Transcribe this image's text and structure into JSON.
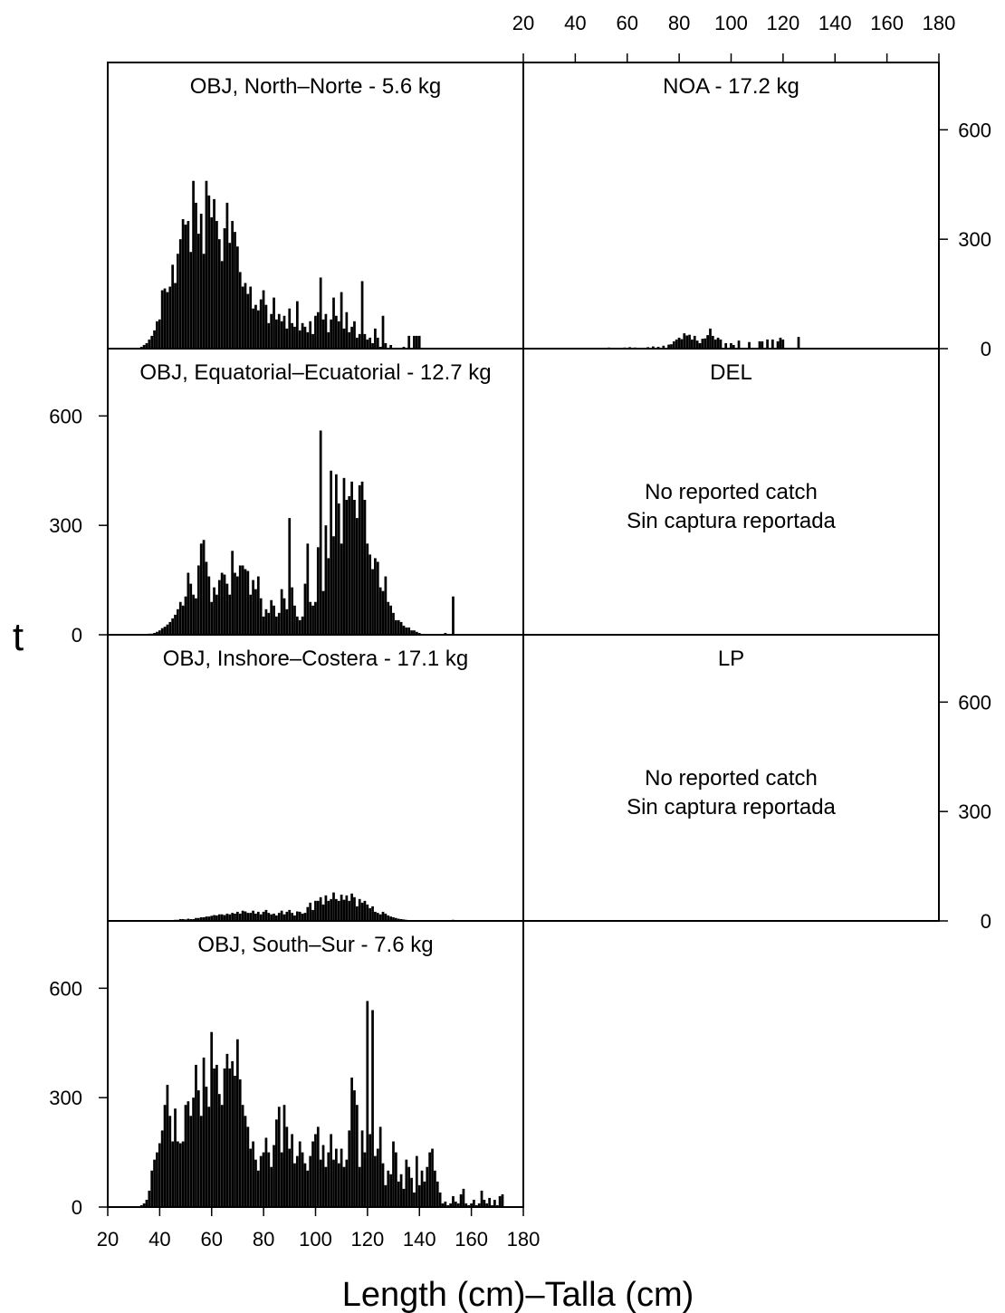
{
  "chart_data": {
    "type": "bar",
    "xlabel": "Length (cm)–Talla (cm)",
    "ylabel": "t",
    "xlim": [
      20,
      180
    ],
    "ylim": [
      0,
      730
    ],
    "x_ticks": [
      20,
      40,
      60,
      80,
      100,
      120,
      140,
      160,
      180
    ],
    "y_ticks": [
      0,
      300,
      600
    ],
    "bin_width_cm": 1,
    "panels": [
      {
        "id": "obj-north",
        "title": "OBJ, North–Norte - 5.6 kg",
        "series": {
          "x": [
            32,
            33,
            34,
            35,
            36,
            37,
            38,
            39,
            40,
            41,
            42,
            43,
            44,
            45,
            46,
            47,
            48,
            49,
            50,
            51,
            52,
            53,
            54,
            55,
            56,
            57,
            58,
            59,
            60,
            61,
            62,
            63,
            64,
            65,
            66,
            67,
            68,
            69,
            70,
            71,
            72,
            73,
            74,
            75,
            76,
            77,
            78,
            79,
            80,
            81,
            82,
            83,
            84,
            85,
            86,
            87,
            88,
            89,
            90,
            91,
            92,
            93,
            94,
            95,
            96,
            97,
            98,
            99,
            100,
            101,
            102,
            103,
            104,
            105,
            106,
            107,
            108,
            109,
            110,
            111,
            112,
            113,
            114,
            115,
            116,
            117,
            118,
            119,
            120,
            121,
            122,
            123,
            124,
            125,
            126,
            127,
            128,
            129,
            130,
            131,
            132,
            133,
            134,
            135,
            136,
            137,
            138,
            139,
            140
          ],
          "values": [
            0,
            5,
            10,
            15,
            25,
            35,
            50,
            75,
            80,
            160,
            165,
            155,
            170,
            230,
            180,
            260,
            300,
            355,
            340,
            350,
            265,
            460,
            400,
            315,
            370,
            260,
            460,
            420,
            360,
            410,
            350,
            300,
            240,
            330,
            400,
            290,
            350,
            320,
            280,
            210,
            170,
            180,
            150,
            170,
            110,
            120,
            105,
            135,
            160,
            120,
            70,
            95,
            140,
            80,
            95,
            75,
            90,
            55,
            110,
            70,
            60,
            130,
            50,
            70,
            60,
            45,
            75,
            40,
            90,
            100,
            195,
            80,
            95,
            45,
            80,
            140,
            90,
            75,
            155,
            55,
            100,
            45,
            60,
            75,
            30,
            40,
            185,
            40,
            25,
            30,
            15,
            55,
            30,
            5,
            90,
            15,
            0,
            10,
            0,
            0,
            0,
            0,
            5,
            0,
            35,
            0,
            35,
            35,
            35
          ]
        }
      },
      {
        "id": "noa",
        "title": "NOA - 17.2 kg",
        "series": {
          "x": [
            53,
            59,
            61,
            63,
            68,
            70,
            72,
            74,
            76,
            77,
            78,
            79,
            80,
            81,
            82,
            83,
            84,
            85,
            86,
            87,
            88,
            89,
            90,
            91,
            92,
            93,
            94,
            95,
            96,
            98,
            100,
            101,
            103,
            107,
            111,
            112,
            114,
            116,
            118,
            119,
            120,
            126
          ],
          "values": [
            3,
            3,
            4,
            3,
            4,
            6,
            5,
            8,
            11,
            12,
            20,
            25,
            30,
            26,
            42,
            36,
            38,
            25,
            35,
            22,
            15,
            27,
            28,
            37,
            55,
            35,
            25,
            30,
            25,
            15,
            15,
            10,
            22,
            18,
            20,
            20,
            25,
            25,
            20,
            30,
            25,
            32
          ]
        }
      },
      {
        "id": "obj-equatorial",
        "title": "OBJ, Equatorial–Ecuatorial - 12.7 kg",
        "series": {
          "x": [
            35,
            36,
            37,
            38,
            39,
            40,
            41,
            42,
            43,
            44,
            45,
            46,
            47,
            48,
            49,
            50,
            51,
            52,
            53,
            54,
            55,
            56,
            57,
            58,
            59,
            60,
            61,
            62,
            63,
            64,
            65,
            66,
            67,
            68,
            69,
            70,
            71,
            72,
            73,
            74,
            75,
            76,
            77,
            78,
            79,
            80,
            81,
            82,
            83,
            84,
            85,
            86,
            87,
            88,
            89,
            90,
            91,
            92,
            93,
            94,
            95,
            96,
            97,
            98,
            99,
            100,
            101,
            102,
            103,
            104,
            105,
            106,
            107,
            108,
            109,
            110,
            111,
            112,
            113,
            114,
            115,
            116,
            117,
            118,
            119,
            120,
            121,
            122,
            123,
            124,
            125,
            126,
            127,
            128,
            129,
            130,
            131,
            132,
            133,
            134,
            135,
            136,
            137,
            138,
            139,
            140,
            150,
            153
          ],
          "values": [
            2,
            3,
            3,
            5,
            8,
            12,
            18,
            22,
            28,
            35,
            45,
            55,
            70,
            90,
            80,
            105,
            170,
            140,
            110,
            100,
            190,
            250,
            260,
            200,
            160,
            90,
            130,
            110,
            150,
            170,
            165,
            140,
            110,
            230,
            170,
            160,
            190,
            190,
            180,
            175,
            110,
            150,
            125,
            160,
            100,
            50,
            70,
            60,
            95,
            80,
            50,
            60,
            125,
            100,
            70,
            320,
            130,
            80,
            50,
            40,
            50,
            140,
            250,
            90,
            80,
            90,
            240,
            560,
            120,
            300,
            210,
            450,
            270,
            440,
            360,
            250,
            430,
            370,
            380,
            420,
            370,
            320,
            410,
            420,
            370,
            250,
            220,
            180,
            210,
            200,
            130,
            120,
            160,
            90,
            80,
            60,
            40,
            40,
            35,
            25,
            20,
            20,
            12,
            12,
            8,
            5,
            5,
            105
          ]
        }
      },
      {
        "id": "del",
        "title": "DEL",
        "note_line1": "No reported catch",
        "note_line2": "Sin captura reportada"
      },
      {
        "id": "obj-inshore",
        "title": "OBJ, Inshore–Costera - 17.1 kg",
        "series": {
          "x": [
            45,
            46,
            47,
            48,
            49,
            50,
            51,
            52,
            53,
            54,
            55,
            56,
            57,
            58,
            59,
            60,
            61,
            62,
            63,
            64,
            65,
            66,
            67,
            68,
            69,
            70,
            71,
            72,
            73,
            74,
            75,
            76,
            77,
            78,
            79,
            80,
            81,
            82,
            83,
            84,
            85,
            86,
            87,
            88,
            89,
            90,
            91,
            92,
            93,
            94,
            95,
            96,
            97,
            98,
            99,
            100,
            101,
            102,
            103,
            104,
            105,
            106,
            107,
            108,
            109,
            110,
            111,
            112,
            113,
            114,
            115,
            116,
            117,
            118,
            119,
            120,
            121,
            122,
            123,
            124,
            125,
            126,
            127,
            128,
            129,
            130,
            131,
            132,
            133,
            134,
            135,
            136,
            137,
            138,
            139,
            140,
            153
          ],
          "values": [
            2,
            3,
            3,
            5,
            5,
            4,
            6,
            5,
            5,
            8,
            8,
            10,
            10,
            12,
            12,
            14,
            16,
            15,
            18,
            18,
            16,
            20,
            18,
            22,
            20,
            25,
            20,
            28,
            26,
            22,
            22,
            28,
            20,
            25,
            18,
            25,
            30,
            22,
            18,
            20,
            15,
            22,
            28,
            18,
            25,
            30,
            22,
            15,
            26,
            25,
            20,
            22,
            38,
            50,
            30,
            55,
            55,
            65,
            45,
            70,
            55,
            60,
            78,
            60,
            55,
            72,
            58,
            70,
            55,
            75,
            65,
            40,
            60,
            50,
            55,
            45,
            35,
            40,
            25,
            22,
            18,
            25,
            20,
            15,
            12,
            10,
            8,
            6,
            5,
            4,
            3,
            2,
            2,
            1,
            1,
            0,
            3
          ]
        }
      },
      {
        "id": "lp",
        "title": "LP",
        "note_line1": "No reported catch",
        "note_line2": "Sin captura reportada"
      },
      {
        "id": "obj-south",
        "title": "OBJ, South–Sur - 7.6 kg",
        "series": {
          "x": [
            33,
            34,
            35,
            36,
            37,
            38,
            39,
            40,
            41,
            42,
            43,
            44,
            45,
            46,
            47,
            48,
            49,
            50,
            51,
            52,
            53,
            54,
            55,
            56,
            57,
            58,
            59,
            60,
            61,
            62,
            63,
            64,
            65,
            66,
            67,
            68,
            69,
            70,
            71,
            72,
            73,
            74,
            75,
            76,
            77,
            78,
            79,
            80,
            81,
            82,
            83,
            84,
            85,
            86,
            87,
            88,
            89,
            90,
            91,
            92,
            93,
            94,
            95,
            96,
            97,
            98,
            99,
            100,
            101,
            102,
            103,
            104,
            105,
            106,
            107,
            108,
            109,
            110,
            111,
            112,
            113,
            114,
            115,
            116,
            117,
            118,
            119,
            120,
            121,
            122,
            123,
            124,
            125,
            126,
            127,
            128,
            129,
            130,
            131,
            132,
            133,
            134,
            135,
            136,
            137,
            138,
            139,
            140,
            141,
            142,
            143,
            144,
            145,
            146,
            147,
            148,
            149,
            150,
            151,
            152,
            153,
            154,
            155,
            156,
            157,
            158,
            159,
            160,
            161,
            162,
            163,
            164,
            165,
            166,
            167,
            168,
            169,
            170,
            171,
            172
          ],
          "values": [
            5,
            10,
            20,
            45,
            100,
            130,
            150,
            175,
            210,
            280,
            335,
            250,
            180,
            270,
            180,
            175,
            180,
            280,
            290,
            250,
            300,
            390,
            320,
            250,
            410,
            330,
            275,
            480,
            380,
            390,
            310,
            280,
            380,
            420,
            380,
            400,
            360,
            460,
            350,
            280,
            250,
            220,
            160,
            180,
            130,
            100,
            140,
            150,
            190,
            150,
            110,
            170,
            240,
            275,
            150,
            280,
            220,
            160,
            200,
            120,
            140,
            180,
            150,
            120,
            100,
            140,
            180,
            200,
            220,
            130,
            170,
            110,
            150,
            200,
            130,
            160,
            120,
            160,
            110,
            130,
            210,
            355,
            320,
            280,
            110,
            210,
            150,
            565,
            200,
            540,
            140,
            160,
            220,
            120,
            60,
            100,
            90,
            180,
            150,
            70,
            90,
            50,
            130,
            110,
            80,
            40,
            140,
            60,
            100,
            70,
            110,
            150,
            160,
            100,
            70,
            40,
            10,
            15,
            5,
            10,
            30,
            15,
            10,
            35,
            50,
            10,
            5,
            10,
            20,
            5,
            10,
            45,
            20,
            10,
            25,
            5,
            20,
            5,
            30,
            35
          ]
        }
      },
      {
        "id": "empty-slot",
        "title": ""
      }
    ]
  }
}
